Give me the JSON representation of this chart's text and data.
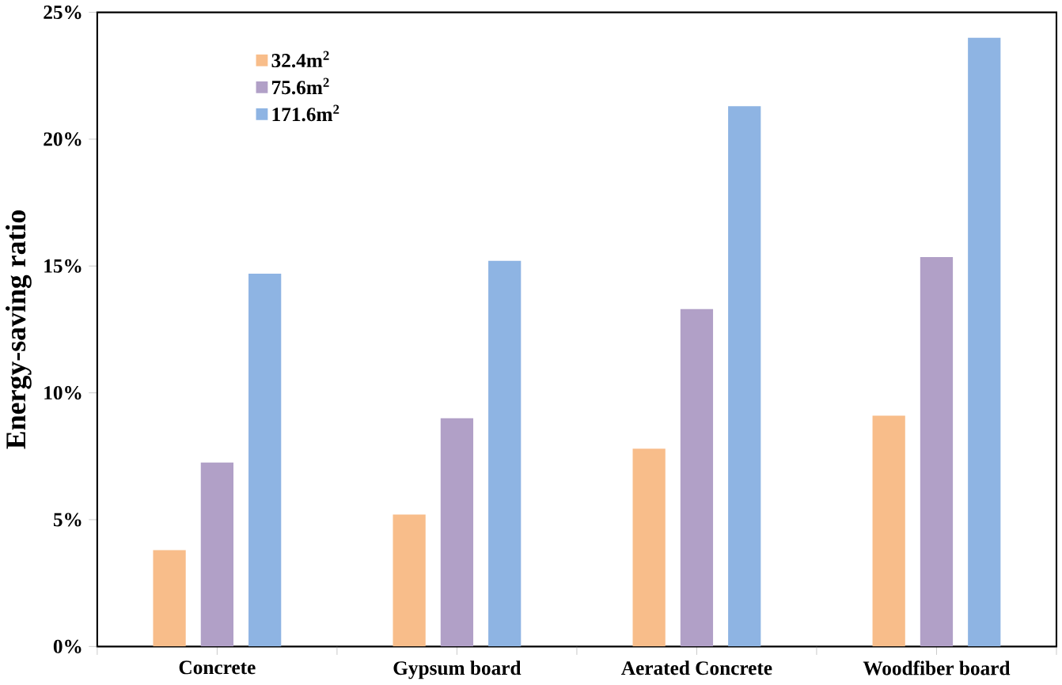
{
  "chart_data": {
    "type": "bar",
    "ylabel": "Energy-saving ratio",
    "categories": [
      "Concrete",
      "Gypsum board",
      "Aerated Concrete",
      "Woodfiber board"
    ],
    "series": [
      {
        "name": "32.4m$^{2}$",
        "color": "#f8bd8a",
        "values": [
          3.8,
          5.2,
          7.8,
          9.1
        ]
      },
      {
        "name": "75.6m$^{2}$",
        "color": "#b1a0c7",
        "values": [
          7.25,
          9.0,
          13.3,
          15.35
        ]
      },
      {
        "name": "171.6m$^{2}$",
        "color": "#8eb4e3",
        "values": [
          14.7,
          15.2,
          21.3,
          24.0
        ]
      }
    ],
    "ylim": [
      0,
      25
    ],
    "yticks": [
      {
        "value": 0,
        "label": "0%"
      },
      {
        "value": 5,
        "label": "5%"
      },
      {
        "value": 10,
        "label": "10%"
      },
      {
        "value": 15,
        "label": "15%"
      },
      {
        "value": 20,
        "label": "20%"
      },
      {
        "value": 25,
        "label": "25%"
      }
    ],
    "grid": false,
    "legend": "top left"
  }
}
